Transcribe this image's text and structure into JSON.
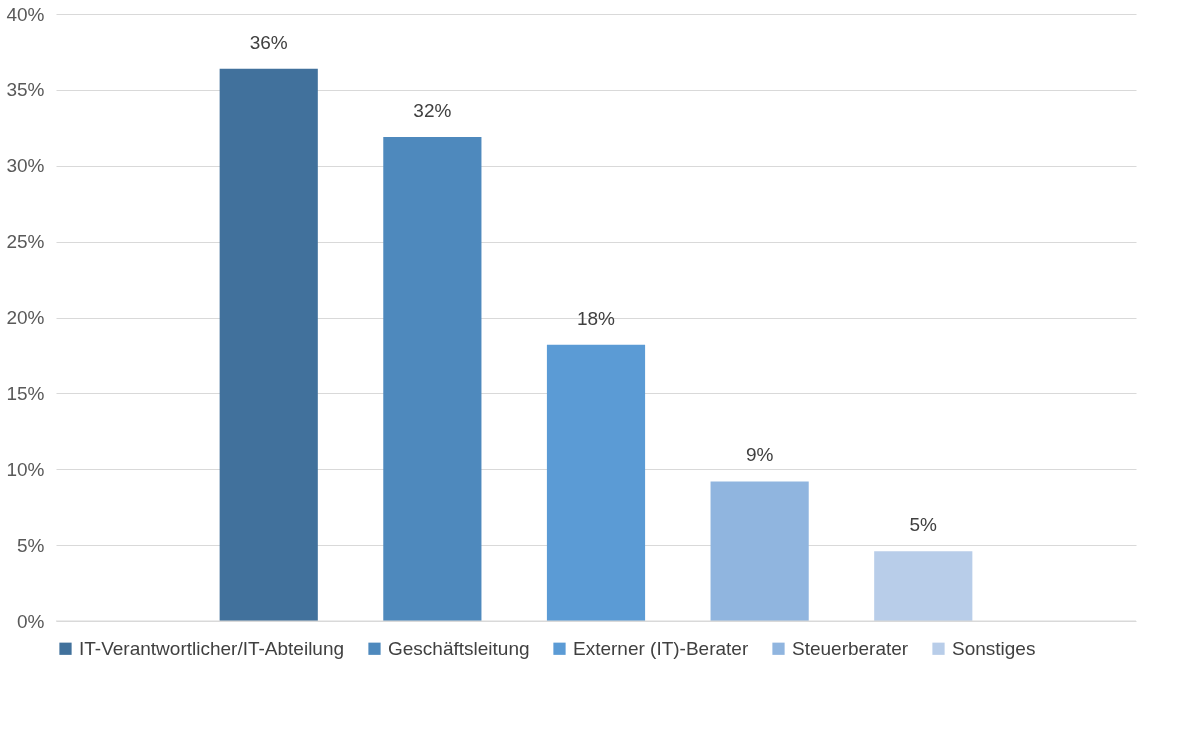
{
  "chart_data": {
    "type": "bar",
    "categories": [
      null
    ],
    "series": [
      {
        "name": "IT-Verantwortlicher/IT-Abteilung",
        "color": "#41719c",
        "values": [
          36.4
        ],
        "value_labels": [
          "36%"
        ]
      },
      {
        "name": "Geschäftsleitung",
        "color": "#4e89bd",
        "values": [
          31.9
        ],
        "value_labels": [
          "32%"
        ]
      },
      {
        "name": "Externer (IT)-Berater",
        "color": "#5b9bd5",
        "values": [
          18.2
        ],
        "value_labels": [
          "18%"
        ]
      },
      {
        "name": "Steuerberater",
        "color": "#90b5df",
        "values": [
          9.2
        ],
        "value_labels": [
          "9%"
        ]
      },
      {
        "name": "Sonstiges",
        "color": "#b8cde9",
        "values": [
          4.6
        ],
        "value_labels": [
          "5%"
        ]
      }
    ],
    "ylim": [
      0,
      40
    ],
    "yticks": [
      {
        "value": 0,
        "label": "0%"
      },
      {
        "value": 5,
        "label": "5%"
      },
      {
        "value": 10,
        "label": "10%"
      },
      {
        "value": 15,
        "label": "15%"
      },
      {
        "value": 20,
        "label": "20%"
      },
      {
        "value": 25,
        "label": "25%"
      },
      {
        "value": 30,
        "label": "30%"
      },
      {
        "value": 35,
        "label": "35%"
      },
      {
        "value": 40,
        "label": "40%"
      }
    ],
    "grid": "y",
    "legend": "bottom"
  }
}
